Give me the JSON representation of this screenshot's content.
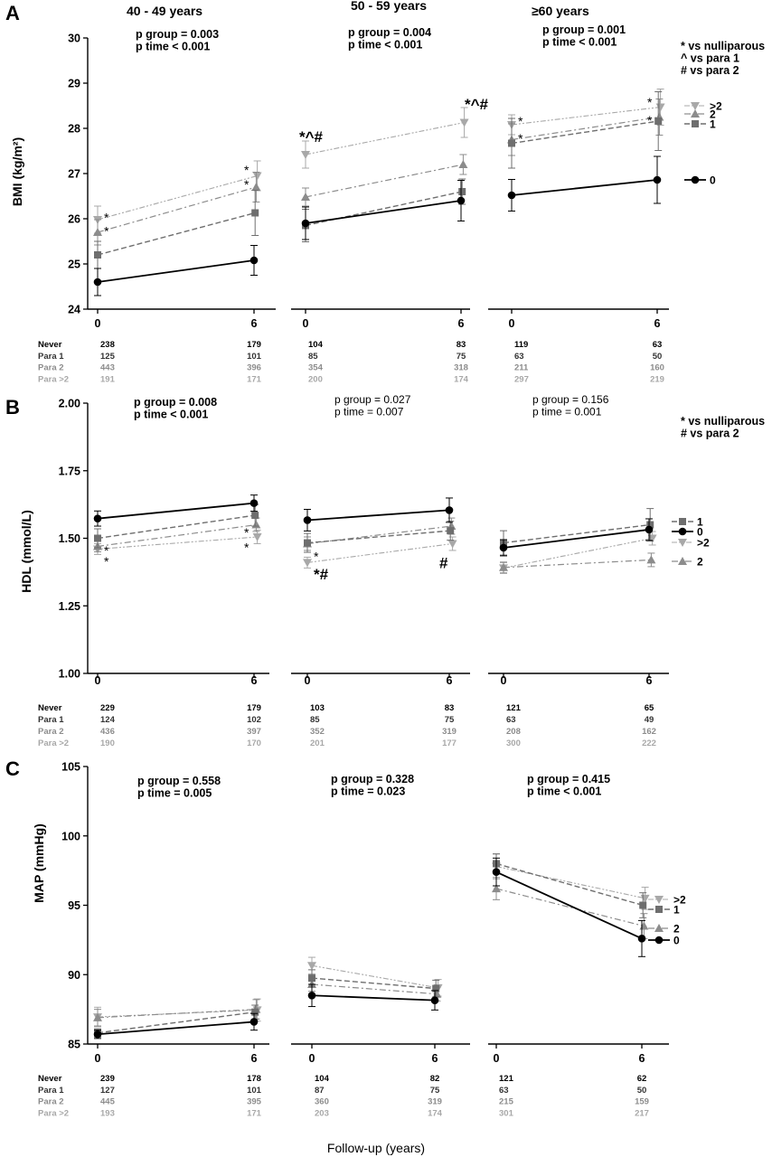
{
  "colors": {
    "never": "#000000",
    "para1": "#6e6e6e",
    "para2": "#8c8c8c",
    "para_gt2": "#a8a8a8"
  },
  "x_axis_title": "Follow-up (years)",
  "n_row_labels": [
    "Never",
    "Para 1",
    "Para 2",
    "Para >2"
  ],
  "chart_data": [
    {
      "panel": "A",
      "type": "line",
      "ylabel": "BMI (kg/m²)",
      "ylim": [
        24,
        30
      ],
      "yticks": [
        "24",
        "25",
        "26",
        "27",
        "28",
        "29",
        "30"
      ],
      "sig_legend": [
        "* vs nulliparous",
        "^ vs para 1",
        "# vs para 2"
      ],
      "groups": [
        {
          "title": "40 - 49 years",
          "stats": [
            "p group = 0.003",
            "p time < 0.001"
          ],
          "x": [
            "0",
            "6"
          ],
          "series": [
            {
              "name": "0",
              "key": "never",
              "values": [
                24.6,
                25.08
              ],
              "err": [
                0.3,
                0.33
              ]
            },
            {
              "name": "1",
              "key": "para1",
              "values": [
                25.2,
                26.13
              ],
              "err": [
                0.3,
                0.5
              ]
            },
            {
              "name": "2",
              "key": "para2",
              "values": [
                25.7,
                26.7
              ],
              "err": [
                0.28,
                0.33
              ]
            },
            {
              "name": ">2",
              "key": "para_gt2",
              "values": [
                25.98,
                26.95
              ],
              "err": [
                0.3,
                0.33
              ]
            }
          ],
          "marks": [
            {
              "text": "*",
              "x": 0,
              "y": 26.05
            },
            {
              "text": "*",
              "x": 0,
              "y": 25.75
            },
            {
              "text": "*",
              "x": 1,
              "y": 27.1
            },
            {
              "text": "*",
              "x": 1,
              "y": 26.78
            }
          ],
          "n": [
            [
              "238",
              "179"
            ],
            [
              "125",
              "101"
            ],
            [
              "443",
              "396"
            ],
            [
              "191",
              "171"
            ]
          ]
        },
        {
          "title": "50 - 59 years",
          "stats": [
            "p group = 0.004",
            "p time < 0.001"
          ],
          "x": [
            "0",
            "6"
          ],
          "series": [
            {
              "name": "0",
              "key": "never",
              "values": [
                25.9,
                26.4
              ],
              "err": [
                0.36,
                0.45
              ]
            },
            {
              "name": "1",
              "key": "para1",
              "values": [
                25.85,
                26.6
              ],
              "err": [
                0.36,
                0.28
              ]
            },
            {
              "name": "2",
              "key": "para2",
              "values": [
                26.48,
                27.2
              ],
              "err": [
                0.2,
                0.22
              ]
            },
            {
              "name": ">2",
              "key": "para_gt2",
              "values": [
                27.42,
                28.13
              ],
              "err": [
                0.3,
                0.33
              ]
            }
          ],
          "marks": [
            {
              "text": "*^#",
              "x": 0,
              "y": 27.7
            },
            {
              "text": "*^#",
              "x": 1,
              "y": 28.42
            }
          ],
          "n": [
            [
              "104",
              "83"
            ],
            [
              "85",
              "75"
            ],
            [
              "354",
              "318"
            ],
            [
              "200",
              "174"
            ]
          ]
        },
        {
          "title": "≥60 years",
          "stats": [
            "p group = 0.001",
            "p time < 0.001"
          ],
          "x": [
            "0",
            "6"
          ],
          "series": [
            {
              "name": "0",
              "key": "never",
              "values": [
                26.52,
                26.86
              ],
              "err": [
                0.35,
                0.52
              ]
            },
            {
              "name": "1",
              "key": "para1",
              "values": [
                27.67,
                28.16
              ],
              "err": [
                0.55,
                0.65
              ]
            },
            {
              "name": "2",
              "key": "para2",
              "values": [
                27.75,
                28.25
              ],
              "err": [
                0.35,
                0.4
              ]
            },
            {
              "name": ">2",
              "key": "para_gt2",
              "values": [
                28.08,
                28.47
              ],
              "err": [
                0.22,
                0.4
              ]
            }
          ],
          "marks": [
            {
              "text": "*",
              "x": 0,
              "y": 28.18
            },
            {
              "text": "*",
              "x": 0,
              "y": 27.8
            },
            {
              "text": "*",
              "x": 1,
              "y": 28.6
            },
            {
              "text": "*",
              "x": 1,
              "y": 28.2
            }
          ],
          "n": [
            [
              "119",
              "63"
            ],
            [
              "63",
              "50"
            ],
            [
              "211",
              "160"
            ],
            [
              "297",
              "219"
            ]
          ]
        }
      ],
      "legend": [
        {
          "label": ">2",
          "key": "para_gt2"
        },
        {
          "label": "2",
          "key": "para2"
        },
        {
          "label": "1",
          "key": "para1"
        },
        {
          "label": "0",
          "key": "never"
        }
      ]
    },
    {
      "panel": "B",
      "type": "line",
      "ylabel": "HDL (mmol/L)",
      "ylim": [
        1.0,
        2.0
      ],
      "yticks": [
        "1.00",
        "1.25",
        "1.50",
        "1.75",
        "2.00"
      ],
      "sig_legend": [
        "* vs nulliparous",
        "# vs para 2"
      ],
      "groups": [
        {
          "title": "",
          "stats": [
            "p group = 0.008",
            "p time < 0.001"
          ],
          "x": [
            "0",
            "6"
          ],
          "series": [
            {
              "name": "0",
              "key": "never",
              "values": [
                1.573,
                1.63
              ],
              "err": [
                0.028,
                0.03
              ]
            },
            {
              "name": "1",
              "key": "para1",
              "values": [
                1.5,
                1.585
              ],
              "err": [
                0.035,
                0.04
              ]
            },
            {
              "name": "2",
              "key": "para2",
              "values": [
                1.47,
                1.55
              ],
              "err": [
                0.02,
                0.025
              ]
            },
            {
              "name": ">2",
              "key": "para_gt2",
              "values": [
                1.46,
                1.505
              ],
              "err": [
                0.02,
                0.025
              ]
            }
          ],
          "marks": [
            {
              "text": "*",
              "x": 0,
              "y": 1.458
            },
            {
              "text": "*",
              "x": 0,
              "y": 1.418
            },
            {
              "text": "*",
              "x": 1,
              "y": 1.525
            },
            {
              "text": "*",
              "x": 1,
              "y": 1.47
            }
          ],
          "n": [
            [
              "229",
              "179"
            ],
            [
              "124",
              "102"
            ],
            [
              "436",
              "397"
            ],
            [
              "190",
              "170"
            ]
          ]
        },
        {
          "title": "",
          "stats": [
            "p group = 0.027",
            "p time = 0.007"
          ],
          "x": [
            "0",
            "6"
          ],
          "series": [
            {
              "name": "0",
              "key": "never",
              "values": [
                1.567,
                1.604
              ],
              "err": [
                0.04,
                0.045
              ]
            },
            {
              "name": "1",
              "key": "para1",
              "values": [
                1.483,
                1.528
              ],
              "err": [
                0.035,
                0.035
              ]
            },
            {
              "name": "2",
              "key": "para2",
              "values": [
                1.48,
                1.545
              ],
              "err": [
                0.025,
                0.03
              ]
            },
            {
              "name": ">2",
              "key": "para_gt2",
              "values": [
                1.41,
                1.48
              ],
              "err": [
                0.02,
                0.025
              ]
            }
          ],
          "marks": [
            {
              "text": "*",
              "x": 0,
              "y": 1.436
            },
            {
              "text": "*#",
              "x": 0,
              "y": 1.368
            },
            {
              "text": "#",
              "x": 1,
              "y": 1.41
            }
          ],
          "n": [
            [
              "103",
              "83"
            ],
            [
              "85",
              "75"
            ],
            [
              "352",
              "319"
            ],
            [
              "201",
              "177"
            ]
          ]
        },
        {
          "title": "",
          "stats": [
            "p group = 0.156",
            "p time = 0.001"
          ],
          "x": [
            "0",
            "6"
          ],
          "series": [
            {
              "name": "0",
              "key": "never",
              "values": [
                1.465,
                1.532
              ],
              "err": [
                0.03,
                0.04
              ]
            },
            {
              "name": "1",
              "key": "para1",
              "values": [
                1.483,
                1.55
              ],
              "err": [
                0.045,
                0.06
              ]
            },
            {
              "name": "2",
              "key": "para2",
              "values": [
                1.392,
                1.42
              ],
              "err": [
                0.02,
                0.025
              ]
            },
            {
              "name": ">2",
              "key": "para_gt2",
              "values": [
                1.39,
                1.5
              ],
              "err": [
                0.02,
                0.025
              ]
            }
          ],
          "marks": [],
          "n": [
            [
              "121",
              "65"
            ],
            [
              "63",
              "49"
            ],
            [
              "208",
              "162"
            ],
            [
              "300",
              "222"
            ]
          ]
        }
      ],
      "legend": [
        {
          "label": "1",
          "key": "para1"
        },
        {
          "label": "0",
          "key": "never"
        },
        {
          "label": ">2",
          "key": "para_gt2"
        },
        {
          "label": "2",
          "key": "para2"
        }
      ]
    },
    {
      "panel": "C",
      "type": "line",
      "ylabel": "MAP (mmHg)",
      "ylim": [
        85,
        105
      ],
      "yticks": [
        "85",
        "90",
        "95",
        "100",
        "105"
      ],
      "sig_legend": [],
      "groups": [
        {
          "title": "",
          "stats": [
            "p group = 0.558",
            "p time = 0.005"
          ],
          "x": [
            "0",
            "6"
          ],
          "series": [
            {
              "name": "0",
              "key": "never",
              "values": [
                85.7,
                86.6
              ],
              "err": [
                0.3,
                0.6
              ]
            },
            {
              "name": "1",
              "key": "para1",
              "values": [
                85.8,
                87.3
              ],
              "err": [
                0.3,
                0.5
              ]
            },
            {
              "name": "2",
              "key": "para2",
              "values": [
                86.9,
                87.5
              ],
              "err": [
                0.6,
                0.7
              ]
            },
            {
              "name": ">2",
              "key": "para_gt2",
              "values": [
                86.95,
                87.45
              ],
              "err": [
                0.7,
                0.8
              ]
            }
          ],
          "marks": [],
          "n": [
            [
              "239",
              "178"
            ],
            [
              "127",
              "101"
            ],
            [
              "445",
              "395"
            ],
            [
              "193",
              "171"
            ]
          ]
        },
        {
          "title": "",
          "stats": [
            "p group = 0.328",
            "p time = 0.023"
          ],
          "x": [
            "0",
            "6"
          ],
          "series": [
            {
              "name": "0",
              "key": "never",
              "values": [
                88.5,
                88.15
              ],
              "err": [
                0.8,
                0.7
              ]
            },
            {
              "name": "1",
              "key": "para1",
              "values": [
                89.75,
                89.0
              ],
              "err": [
                0.6,
                0.6
              ]
            },
            {
              "name": "2",
              "key": "para2",
              "values": [
                89.3,
                88.6
              ],
              "err": [
                0.5,
                0.5
              ]
            },
            {
              "name": ">2",
              "key": "para_gt2",
              "values": [
                90.65,
                89.05
              ],
              "err": [
                0.6,
                0.6
              ]
            }
          ],
          "marks": [],
          "n": [
            [
              "104",
              "82"
            ],
            [
              "87",
              "75"
            ],
            [
              "360",
              "319"
            ],
            [
              "203",
              "174"
            ]
          ]
        },
        {
          "title": "",
          "stats": [
            "p group = 0.415",
            "p time < 0.001"
          ],
          "x": [
            "0",
            "6"
          ],
          "series": [
            {
              "name": "0",
              "key": "never",
              "values": [
                97.4,
                92.6
              ],
              "err": [
                1.0,
                1.3
              ]
            },
            {
              "name": "1",
              "key": "para1",
              "values": [
                98.0,
                95.0
              ],
              "err": [
                0.7,
                0.9
              ]
            },
            {
              "name": "2",
              "key": "para2",
              "values": [
                96.2,
                93.5
              ],
              "err": [
                0.8,
                0.9
              ]
            },
            {
              "name": ">2",
              "key": "para_gt2",
              "values": [
                97.8,
                95.5
              ],
              "err": [
                0.9,
                0.8
              ]
            }
          ],
          "marks": [],
          "n": [
            [
              "121",
              "62"
            ],
            [
              "63",
              "50"
            ],
            [
              "215",
              "159"
            ],
            [
              "301",
              "217"
            ]
          ]
        }
      ],
      "legend": [
        {
          "label": ">2",
          "key": "para_gt2"
        },
        {
          "label": "1",
          "key": "para1"
        },
        {
          "label": "2",
          "key": "para2"
        },
        {
          "label": "0",
          "key": "never"
        }
      ]
    }
  ]
}
